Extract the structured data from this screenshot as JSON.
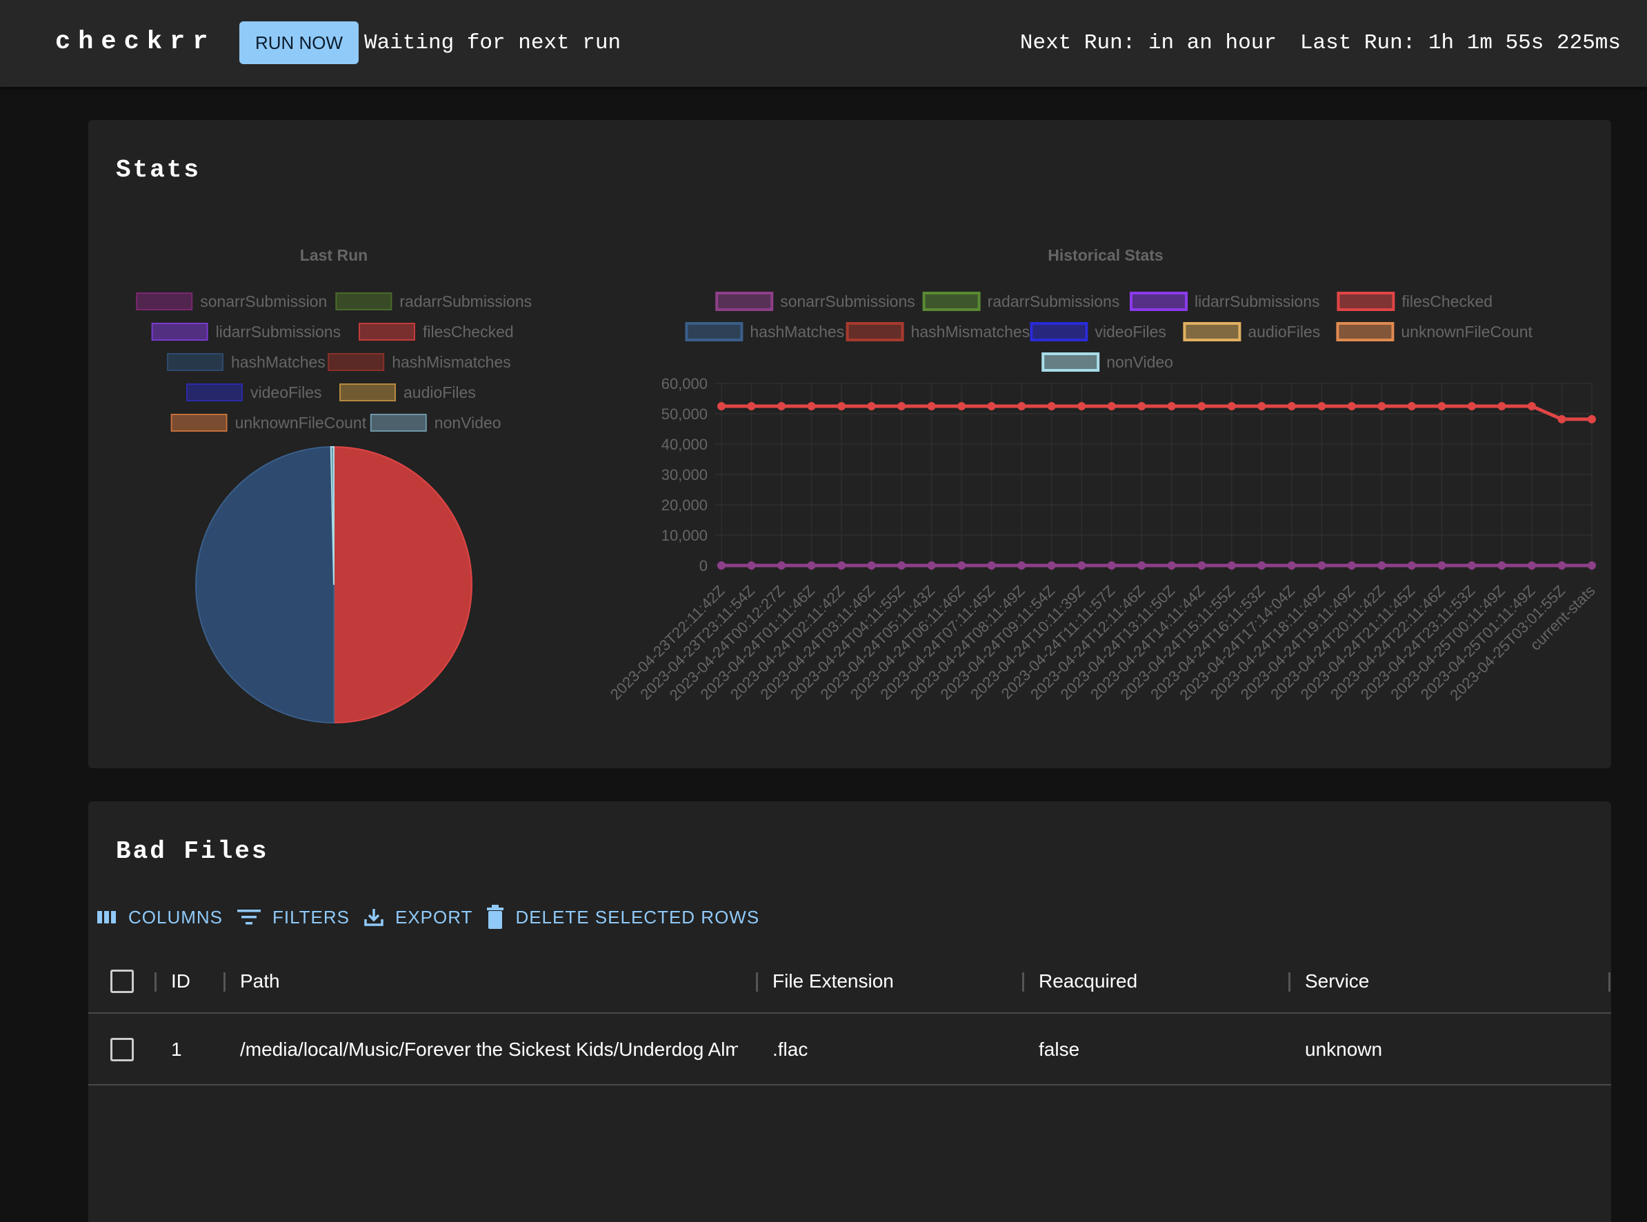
{
  "app": {
    "title": "checkrr",
    "run_button": "RUN NOW",
    "status": "Waiting for next run",
    "next_run": "Next Run: in an hour",
    "last_run": "Last Run: 1h 1m 55s 225ms"
  },
  "stats": {
    "heading": "Stats"
  },
  "chart_data": [
    {
      "type": "pie",
      "title": "Last Run",
      "legend": [
        "sonarrSubmission",
        "radarrSubmissions",
        "lidarrSubmissions",
        "filesChecked",
        "hashMatches",
        "hashMismatches",
        "videoFiles",
        "audioFiles",
        "unknownFileCount",
        "nonVideo"
      ],
      "colors": [
        "#7a2872",
        "#4a6b2a",
        "#7a3bcf",
        "#c23b3b",
        "#2e4a6e",
        "#8a2f2a",
        "#2a2aa8",
        "#b58a3f",
        "#c2703d",
        "#6f96a8"
      ],
      "values": [
        0,
        0,
        0,
        48117,
        47794,
        0,
        0,
        0,
        0,
        323
      ],
      "legend_position": "top"
    },
    {
      "type": "line",
      "title": "Historical Stats",
      "legend": [
        "sonarrSubmissions",
        "radarrSubmissions",
        "lidarrSubmissions",
        "filesChecked",
        "hashMatches",
        "hashMismatches",
        "videoFiles",
        "audioFiles",
        "unknownFileCount",
        "nonVideo"
      ],
      "colors": [
        "#8e3f89",
        "#5a8a34",
        "#8a3bea",
        "#e04545",
        "#3a5f8a",
        "#a83a2e",
        "#2b2bd9",
        "#e0b060",
        "#e08a50",
        "#a8dce8"
      ],
      "x": [
        "2023-04-23T22:11:42Z",
        "2023-04-23T23:11:54Z",
        "2023-04-24T00:12:27Z",
        "2023-04-24T01:11:46Z",
        "2023-04-24T02:11:42Z",
        "2023-04-24T03:11:46Z",
        "2023-04-24T04:11:55Z",
        "2023-04-24T05:11:43Z",
        "2023-04-24T06:11:46Z",
        "2023-04-24T07:11:45Z",
        "2023-04-24T08:11:49Z",
        "2023-04-24T09:11:54Z",
        "2023-04-24T10:11:39Z",
        "2023-04-24T11:11:57Z",
        "2023-04-24T12:11:46Z",
        "2023-04-24T13:11:50Z",
        "2023-04-24T14:11:44Z",
        "2023-04-24T15:11:55Z",
        "2023-04-24T16:11:53Z",
        "2023-04-24T17:14:04Z",
        "2023-04-24T18:11:49Z",
        "2023-04-24T19:11:49Z",
        "2023-04-24T20:11:42Z",
        "2023-04-24T21:11:45Z",
        "2023-04-24T22:11:46Z",
        "2023-04-24T23:11:53Z",
        "2023-04-25T00:11:49Z",
        "2023-04-25T01:11:49Z",
        "2023-04-25T03:01:55Z",
        "current-stats"
      ],
      "series": [
        {
          "name": "filesChecked",
          "values": [
            52500,
            52500,
            52500,
            52500,
            52500,
            52500,
            52500,
            52500,
            52500,
            52500,
            52500,
            52500,
            52500,
            52500,
            52500,
            52500,
            52500,
            52500,
            52500,
            52500,
            52500,
            52500,
            52500,
            52500,
            52500,
            52500,
            52500,
            52500,
            48200,
            48200
          ]
        },
        {
          "name": "sonarrSubmissions",
          "values": [
            0,
            0,
            0,
            0,
            0,
            0,
            0,
            0,
            0,
            0,
            0,
            0,
            0,
            0,
            0,
            0,
            0,
            0,
            0,
            0,
            0,
            0,
            0,
            0,
            0,
            0,
            0,
            0,
            0,
            0
          ]
        }
      ],
      "yticks": [
        "60,000",
        "50,000",
        "40,000",
        "30,000",
        "20,000",
        "10,000",
        "0"
      ],
      "ylim": [
        0,
        60000
      ],
      "grid": true,
      "legend_position": "top"
    }
  ],
  "bad_files": {
    "heading": "Bad Files",
    "toolbar": {
      "columns": "COLUMNS",
      "filters": "FILTERS",
      "export": "EXPORT",
      "delete": "DELETE SELECTED ROWS"
    },
    "columns": [
      "ID",
      "Path",
      "File Extension",
      "Reacquired",
      "Service"
    ],
    "rows": [
      {
        "id": "1",
        "path": "/media/local/Music/Forever the Sickest Kids/Underdog Alma Mater/Forever the Sickest Kids - Underdog Alma Mater - 04 - Whoa Oh! (Me vs. Everyone).flac",
        "ext": ".flac",
        "reacquired": "false",
        "service": "unknown"
      }
    ]
  }
}
